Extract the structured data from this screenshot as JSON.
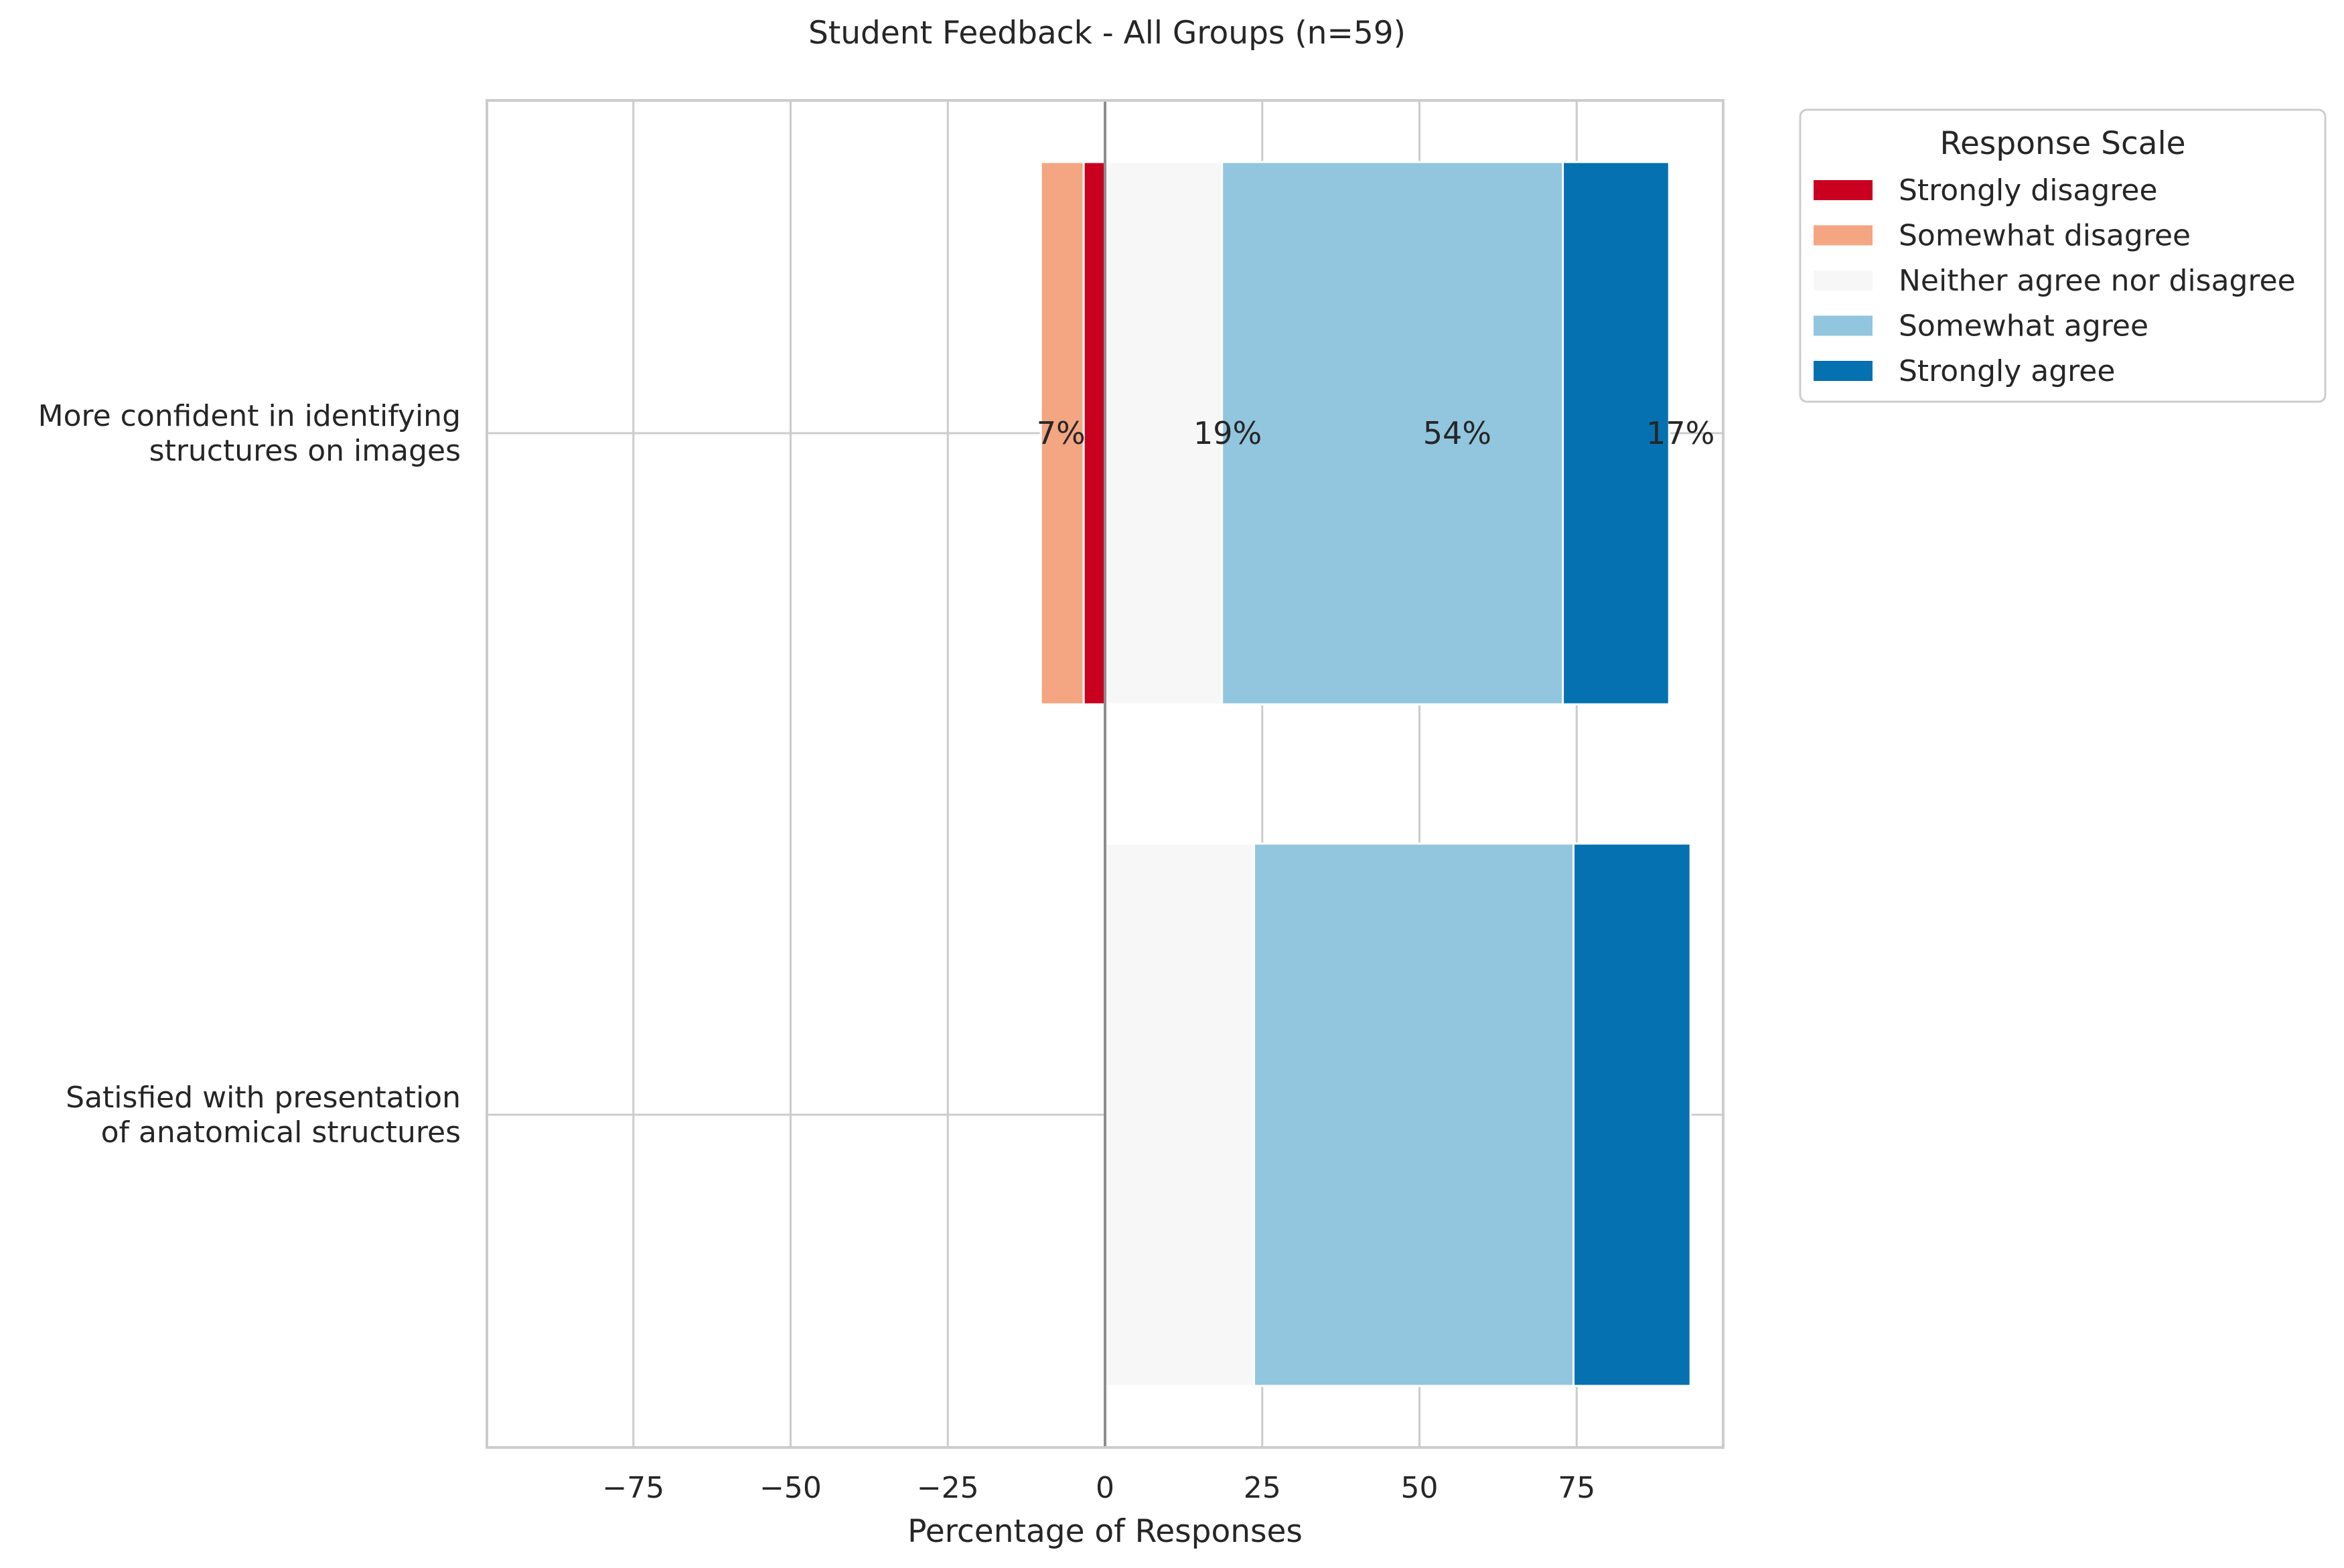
{
  "chart_data": {
    "type": "bar",
    "orientation": "horizontal",
    "stacked": true,
    "diverging": true,
    "title": "Student Feedback - All Groups (n=59)",
    "xlabel": "Percentage of Responses",
    "ylabel": "",
    "xlim": [
      -98,
      98
    ],
    "xticks": [
      -75,
      -50,
      -25,
      0,
      25,
      50,
      75
    ],
    "xtick_labels": [
      "−75",
      "−50",
      "−25",
      "0",
      "25",
      "50",
      "75"
    ],
    "grid": true,
    "legend_position": "outside-top-right",
    "legend_title": "Response Scale",
    "categories": [
      [
        "More confident in identifying",
        "structures on images"
      ],
      [
        "Satisfied with presentation",
        "of anatomical structures"
      ]
    ],
    "series": [
      {
        "name": "Strongly disagree",
        "color": "#ca0020",
        "values": [
          3.4,
          0
        ]
      },
      {
        "name": "Somewhat disagree",
        "color": "#f4a582",
        "values": [
          6.8,
          0
        ]
      },
      {
        "name": "Neither agree nor disagree",
        "color": "#f7f7f7",
        "values": [
          18.6,
          23.7
        ]
      },
      {
        "name": "Somewhat agree",
        "color": "#92c5de",
        "values": [
          54.2,
          50.8
        ]
      },
      {
        "name": "Strongly agree",
        "color": "#0571b0",
        "values": [
          16.9,
          18.6
        ]
      }
    ],
    "data_labels": [
      {
        "category_index": 0,
        "x": -7,
        "text": "7%"
      },
      {
        "category_index": 0,
        "x": 19.5,
        "text": "19%"
      },
      {
        "category_index": 0,
        "x": 56,
        "text": "54%"
      },
      {
        "category_index": 0,
        "x": 91.5,
        "text": "17%"
      }
    ]
  }
}
